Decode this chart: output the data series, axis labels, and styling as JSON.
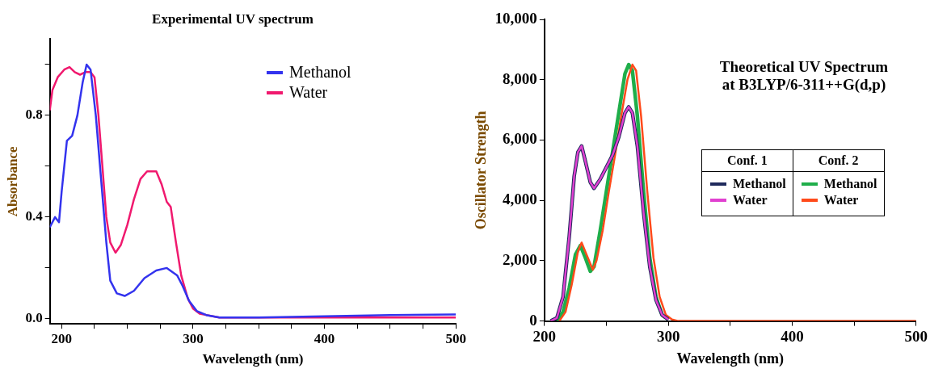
{
  "chart_data": [
    {
      "type": "line",
      "title": "Experimental UV spectrum",
      "xlabel": "Wavelength (nm)",
      "ylabel": "Absorbance",
      "xlim": [
        191,
        500
      ],
      "ylim": [
        -0.02,
        1.1
      ],
      "xticks": [
        200,
        {
          "value": 225,
          "label": null
        },
        {
          "value": 250,
          "label": null
        },
        {
          "value": 275,
          "label": null
        },
        300,
        {
          "value": 325,
          "label": null
        },
        {
          "value": 350,
          "label": null
        },
        {
          "value": 375,
          "label": null
        },
        400,
        {
          "value": 425,
          "label": null
        },
        {
          "value": 450,
          "label": null
        },
        {
          "value": 475,
          "label": null
        },
        500
      ],
      "yticks": [
        {
          "value": 0,
          "label": "0.0"
        },
        {
          "value": 0.2,
          "label": null
        },
        {
          "value": 0.4,
          "label": "0.4"
        },
        {
          "value": 0.6,
          "label": null
        },
        {
          "value": 0.8,
          "label": "0.8"
        },
        {
          "value": 1.0,
          "label": null
        }
      ],
      "grid": false,
      "legend": "top right",
      "marker": "none",
      "line_style": "solid",
      "series": [
        {
          "name": "Methanol",
          "color": "#3333ee",
          "x": [
            191,
            195,
            198,
            200,
            204,
            208,
            212,
            216,
            219,
            222,
            226,
            230,
            234,
            237,
            242,
            248,
            255,
            263,
            272,
            280,
            288,
            292,
            297,
            303,
            310,
            320,
            350,
            400,
            450,
            500
          ],
          "values": [
            0.36,
            0.4,
            0.38,
            0.5,
            0.7,
            0.72,
            0.8,
            0.93,
            1.0,
            0.98,
            0.8,
            0.55,
            0.3,
            0.15,
            0.1,
            0.09,
            0.11,
            0.16,
            0.19,
            0.2,
            0.17,
            0.13,
            0.07,
            0.03,
            0.015,
            0.005,
            0.005,
            0.01,
            0.015,
            0.017
          ]
        },
        {
          "name": "Water",
          "color": "#f0196e",
          "x": [
            191,
            193,
            197,
            202,
            206,
            210,
            214,
            218,
            222,
            225,
            228,
            231,
            234,
            237,
            241,
            245,
            250,
            255,
            260,
            265,
            272,
            276,
            280,
            283,
            287,
            291,
            296,
            300,
            305,
            320,
            400,
            500
          ],
          "values": [
            0.82,
            0.9,
            0.95,
            0.98,
            0.99,
            0.97,
            0.96,
            0.97,
            0.97,
            0.95,
            0.8,
            0.6,
            0.4,
            0.3,
            0.26,
            0.29,
            0.37,
            0.47,
            0.55,
            0.58,
            0.58,
            0.53,
            0.46,
            0.44,
            0.3,
            0.17,
            0.08,
            0.04,
            0.02,
            0.005,
            0.005,
            0.005
          ]
        }
      ]
    },
    {
      "type": "line",
      "title": "Theoretical UV Spectrum\nat B3LYP/6-311++G(d,p)",
      "xlabel": "Wavelength (nm)",
      "ylabel": "Oscillator Strength",
      "xlim": [
        200,
        500
      ],
      "ylim": [
        0,
        10000
      ],
      "xticks": [
        200,
        {
          "value": 250,
          "label": null
        },
        300,
        {
          "value": 350,
          "label": null
        },
        400,
        {
          "value": 450,
          "label": null
        },
        500
      ],
      "yticks": [
        0,
        {
          "value": 2000,
          "label": "2,000"
        },
        {
          "value": 4000,
          "label": "4,000"
        },
        {
          "value": 6000,
          "label": "6,000"
        },
        {
          "value": 8000,
          "label": "8,000"
        },
        {
          "value": 10000,
          "label": "10,000"
        }
      ],
      "grid": false,
      "legend": "right",
      "marker": "none",
      "line_style": "solid",
      "annotations": [
        "Conf. 1",
        "Conf. 2"
      ],
      "series": [
        {
          "name": "Methanol",
          "color": "#1f2a5c",
          "x": [
            205,
            210,
            215,
            220,
            224,
            227,
            230,
            233,
            237,
            240,
            245,
            250,
            255,
            260,
            265,
            268,
            271,
            275,
            280,
            285,
            290,
            295,
            300
          ],
          "values": [
            0,
            100,
            800,
            2800,
            4800,
            5600,
            5800,
            5300,
            4600,
            4400,
            4700,
            5100,
            5500,
            6100,
            6900,
            7100,
            6900,
            5800,
            3600,
            1800,
            700,
            200,
            50
          ]
        },
        {
          "name": "Water",
          "color": "#e040d0",
          "x": [
            205,
            210,
            215,
            220,
            224,
            227,
            230,
            233,
            237,
            240,
            245,
            250,
            255,
            260,
            265,
            268,
            271,
            275,
            280,
            285,
            290,
            295,
            300
          ],
          "values": [
            0,
            100,
            800,
            2800,
            4800,
            5600,
            5800,
            5300,
            4600,
            4400,
            4700,
            5100,
            5500,
            6100,
            6900,
            7100,
            6900,
            5800,
            3600,
            1800,
            700,
            200,
            50
          ]
        },
        {
          "name": "Methanol",
          "color": "#1fae4a",
          "x": [
            210,
            215,
            220,
            225,
            229,
            233,
            237,
            240,
            245,
            250,
            255,
            260,
            265,
            268,
            271,
            275,
            280,
            285,
            290,
            295,
            300
          ],
          "values": [
            0,
            300,
            1100,
            2200,
            2500,
            2100,
            1650,
            1800,
            3000,
            4300,
            5600,
            6900,
            8200,
            8500,
            8300,
            6800,
            4300,
            2100,
            800,
            200,
            50
          ]
        },
        {
          "name": "Water",
          "color": "#ff4a1a",
          "x": [
            212,
            217,
            222,
            227,
            230,
            234,
            239,
            242,
            247,
            252,
            257,
            262,
            267,
            271,
            274,
            278,
            283,
            288,
            293,
            298,
            303,
            308,
            500
          ],
          "values": [
            0,
            300,
            1200,
            2300,
            2600,
            2200,
            1700,
            2000,
            3000,
            4300,
            5500,
            6800,
            8000,
            8500,
            8300,
            6800,
            4300,
            2100,
            800,
            200,
            50,
            0,
            0
          ]
        }
      ]
    }
  ]
}
